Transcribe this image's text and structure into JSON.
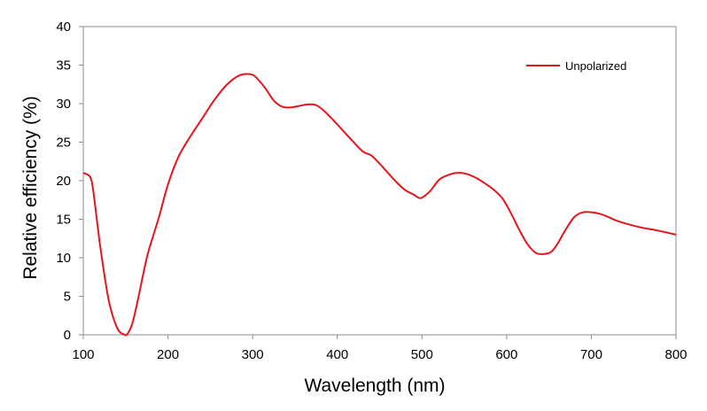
{
  "chart_data": {
    "type": "line",
    "title": "",
    "xlabel": "Wavelength (nm)",
    "ylabel": "Relative efficiency (%)",
    "xlim": [
      100,
      800
    ],
    "ylim": [
      0,
      40
    ],
    "xticks": [
      100,
      200,
      300,
      400,
      500,
      600,
      700,
      800
    ],
    "yticks": [
      0,
      5,
      10,
      15,
      20,
      25,
      30,
      35,
      40
    ],
    "grid": false,
    "legend_position": "top-right",
    "series": [
      {
        "name": "Unpolarized",
        "color": "#e8141b",
        "x": [
          100,
          108,
          112,
          120,
          130,
          140,
          148,
          152,
          158,
          165,
          175,
          183,
          190,
          200,
          212,
          225,
          240,
          255,
          270,
          285,
          298,
          305,
          315,
          325,
          335,
          345,
          355,
          365,
          375,
          385,
          400,
          415,
          430,
          440,
          450,
          460,
          470,
          480,
          490,
          496,
          500,
          510,
          520,
          530,
          540,
          547,
          555,
          565,
          575,
          585,
          595,
          605,
          615,
          625,
          635,
          645,
          653,
          660,
          670,
          680,
          690,
          700,
          710,
          720,
          730,
          745,
          760,
          780,
          800
        ],
        "y": [
          21,
          20.5,
          18.5,
          11.5,
          4.5,
          0.9,
          0.05,
          0.1,
          1.5,
          4.8,
          10.0,
          13.0,
          15.5,
          19.5,
          23.0,
          25.5,
          28.0,
          30.5,
          32.5,
          33.7,
          33.8,
          33.3,
          32.0,
          30.4,
          29.6,
          29.5,
          29.7,
          29.9,
          29.8,
          29.0,
          27.3,
          25.5,
          23.8,
          23.3,
          22.2,
          21.0,
          19.8,
          18.8,
          18.2,
          17.8,
          17.8,
          18.7,
          20.1,
          20.7,
          21.0,
          21.0,
          20.8,
          20.3,
          19.6,
          18.8,
          17.7,
          15.8,
          13.6,
          11.7,
          10.6,
          10.5,
          10.8,
          11.8,
          13.7,
          15.3,
          15.9,
          15.9,
          15.7,
          15.3,
          14.8,
          14.3,
          13.9,
          13.5,
          13.0
        ]
      }
    ]
  }
}
